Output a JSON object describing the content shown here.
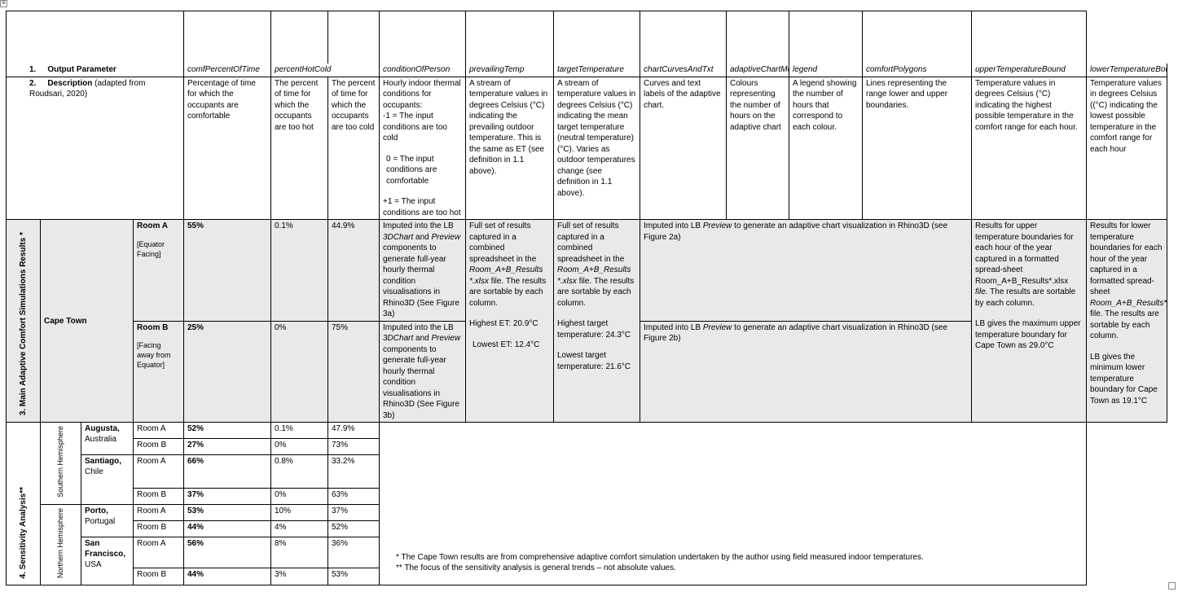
{
  "header": {
    "row1_num": "1.",
    "row1_label": "Output Parameter",
    "row2_num": "2.",
    "row2_label": "Description",
    "row2_suffix": " (adapted from Roudsari, 2020)",
    "params": [
      "comfPercentOfTime",
      "percentHotCold",
      "conditionOfPerson",
      "prevailingTemp",
      "targetTemperature",
      "chartCurvesAndTxt",
      "adaptiveChartMesh",
      "legend",
      "comfortPolygons",
      "upperTemperatureBound",
      "lowerTemperatureBound"
    ],
    "desc": {
      "comf": "Percentage of time for which the occupants are comfortable",
      "hot": "The percent of time for which the occupants are too hot",
      "cold": "The percent of time for which the occupants are too cold",
      "cond_1": "Hourly indoor thermal conditions for occupants:",
      "cond_2": "-1 = The input conditions are too cold",
      "cond_3": "0 = The input conditions are comfortable",
      "cond_4": "+1 = The input conditions are too hot",
      "prevailing": "A stream of temperature values in degrees Celsius (°C) indicating the prevailing outdoor temperature. This is the same as ET (see definition in 1.1 above).",
      "target": "A stream of temperature values in degrees Celsius (°C) indicating the mean target temperature (neutral temperature) (°C). Varies as outdoor temperatures change (see definition in 1.1 above).",
      "curves": "Curves and text labels of the adaptive chart.",
      "mesh": "Colours representing the number of hours on the adaptive chart",
      "legend": "A legend showing the number of hours that correspond to each colour.",
      "polygons": "Lines representing the range lower and upper boundaries.",
      "upper": "Temperature values in degrees Celsius (°C) indicating the highest possible temperature in the comfort range for each hour.",
      "lower": "Temperature values in degrees Celsius ((°C) indicating the lowest possible temperature in the comfort range for each hour"
    }
  },
  "main": {
    "section_label": "3.   Main Adaptive Comfort Simulations Results *",
    "city": "Cape Town",
    "room_a": {
      "name": "Room A",
      "orientation": "[Equator Facing]",
      "comf": "55%",
      "hot": "0.1%",
      "cold": "44.9%",
      "cond_pre": "Imputed into the LB ",
      "cond_it1": "3DChart",
      "cond_mid": " and ",
      "cond_it2": "Preview",
      "cond_post": " components to generate full-year hourly thermal condition visualisations in Rhino3D (See Figure 3a)",
      "chart_pre": "Imputed into LB ",
      "chart_it": "Preview",
      "chart_post": " to generate an adaptive chart visualization in Rhino3D (see Figure 2a)"
    },
    "room_b": {
      "name": "Room B",
      "orientation": "[Facing away from Equator]",
      "comf": "25%",
      "hot": "0%",
      "cold": "75%",
      "cond_pre": "Imputed into the LB ",
      "cond_it1": "3DChart",
      "cond_mid": " and ",
      "cond_it2": "Preview",
      "cond_post": " components to generate full-year hourly thermal condition visualisations in Rhino3D (See Figure 3b)",
      "chart_pre": "Imputed into LB ",
      "chart_it": "Preview",
      "chart_post": " to generate an adaptive chart visualization in Rhino3D (see Figure 2b)"
    },
    "prevailing": {
      "text": "Full set of results captured in a combined spreadsheet in the ",
      "file": "Room_A+B_Results *.xlsx",
      "text2": " file. The results are sortable by each column.",
      "highest": "Highest ET: 20.9°C",
      "lowest": "Lowest ET:  12.4°C"
    },
    "target": {
      "text": "Full set of results captured in a combined spreadsheet in the ",
      "file": "Room_A+B_Results *.xlsx",
      "text2": " file. The results are sortable by each column.",
      "highest": "Highest target temperature: 24.3°C",
      "lowest": "Lowest target temperature: 21.6°C"
    },
    "upper": {
      "text": "Results for upper temperature boundaries for each hour of the year captured in a formatted spread-sheet Room_A+B_Results*.xlsx ",
      "file_word": "file.",
      "text2": " The results are sortable by each column.",
      "extra": "LB gives the maximum upper temperature boundary for Cape Town as 29.0°C"
    },
    "lower": {
      "text": "Results for lower temperature boundaries for each hour of the year captured in a formatted spread-sheet ",
      "file": "Room_A+B_Results*.xlsx",
      "text2": " file. The results are sortable by each column.",
      "extra": "LB gives the minimum lower temperature boundary for Cape Town as 19.1°C"
    }
  },
  "sensitivity": {
    "section_label": "4.   Sensitivity Analysis**",
    "southern": "Southern Hemisphere",
    "northern": "Northern Hemisphere",
    "cities": [
      {
        "name": "Augusta,",
        "country": "Australia",
        "rooms": [
          {
            "room": "Room A",
            "comf": "52%",
            "hot": "0.1%",
            "cold": "47.9%"
          },
          {
            "room": "Room B",
            "comf": "27%",
            "hot": "0%",
            "cold": "73%"
          }
        ]
      },
      {
        "name": "Santiago,",
        "country": "Chile",
        "rooms": [
          {
            "room": "Room A",
            "comf": "66%",
            "hot": "0.8%",
            "cold": "33.2%"
          },
          {
            "room": "Room B",
            "comf": "37%",
            "hot": "0%",
            "cold": "63%"
          }
        ]
      },
      {
        "name": "Porto,",
        "country": "Portugal",
        "rooms": [
          {
            "room": "Room A",
            "comf": "53%",
            "hot": "10%",
            "cold": "37%"
          },
          {
            "room": "Room B",
            "comf": "44%",
            "hot": "4%",
            "cold": "52%"
          }
        ]
      },
      {
        "name": "San Francisco,",
        "country": "USA",
        "rooms": [
          {
            "room": "Room A",
            "comf": "56%",
            "hot": "8%",
            "cold": "36%"
          },
          {
            "room": "Room B",
            "comf": "44%",
            "hot": "3%",
            "cold": "53%"
          }
        ]
      }
    ],
    "note1": "* The Cape Town results are from comprehensive adaptive comfort simulation undertaken by the author using field measured indoor temperatures.",
    "note2": "** The focus of the sensitivity analysis is general trends – not absolute values."
  }
}
